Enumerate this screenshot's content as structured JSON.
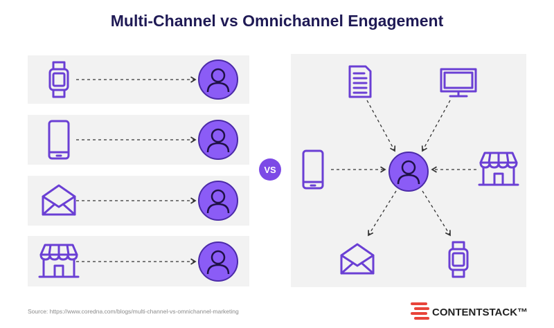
{
  "header": {
    "title": "Multi-Channel vs Omnichannel Engagement"
  },
  "vs_label": "VS",
  "footer": {
    "source": "Source: https://www.coredna.com/blogs/multi-channel-vs-omnichannel-marketing",
    "brand": "CONTENTSTACK™"
  }
}
